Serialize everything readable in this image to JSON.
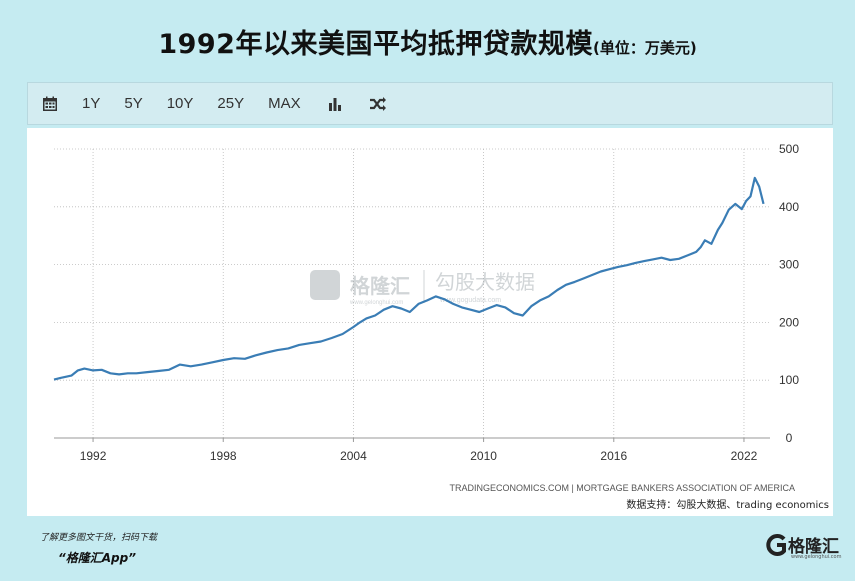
{
  "title": "1992年以来美国平均抵押贷款规模",
  "title_unit": "(单位：万美元)",
  "toolbar": {
    "calendar_icon": "calendar-icon",
    "ranges": [
      "1Y",
      "5Y",
      "10Y",
      "25Y",
      "MAX"
    ],
    "chart_type_icon": "bar-chart-icon",
    "compare_icon": "shuffle-icon"
  },
  "watermark": {
    "brand1": "格隆汇",
    "brand1_url": "www.gelonghui.com",
    "brand2": "勾股大数据",
    "brand2_url": "www.gogudata.com"
  },
  "source_line": "TRADINGECONOMICS.COM  |  MORTGAGE BANKERS ASSOCIATION OF AMERICA",
  "data_support": "数据支持：勾股大数据、trading economics",
  "promo": {
    "line1": "了解更多图文干货，扫码下载",
    "line2": "“格隆汇App”"
  },
  "logo": {
    "text": "格隆汇",
    "sub": "www.gelonghui.com"
  },
  "colors": {
    "line": "#3a7db5",
    "background": "#c5ebf1",
    "grid": "#bbbbbb"
  },
  "chart_data": {
    "type": "line",
    "title": "1992年以来美国平均抵押贷款规模",
    "xlabel": "",
    "ylabel": "",
    "xlim": [
      1990.2,
      2023.2
    ],
    "ylim": [
      0,
      500
    ],
    "x_ticks": [
      "1992",
      "1998",
      "2004",
      "2010",
      "2016",
      "2022"
    ],
    "y_ticks": [
      "0",
      "100",
      "200",
      "300",
      "400",
      "500"
    ],
    "y_axis_position": "right",
    "grid": true,
    "series": [
      {
        "x": [
          1990.2,
          1990.5,
          1991.0,
          1991.3,
          1991.6,
          1992.0,
          1992.4,
          1992.8,
          1993.2,
          1993.6,
          1994.0,
          1994.5,
          1995.0,
          1995.5,
          1996.0,
          1996.5,
          1997.0,
          1997.5,
          1998.0,
          1998.5,
          1999.0,
          1999.5,
          2000.0,
          2000.5,
          2001.0,
          2001.5,
          2002.0,
          2002.5,
          2003.0,
          2003.5,
          2004.0,
          2004.3,
          2004.6,
          2005.0,
          2005.4,
          2005.8,
          2006.2,
          2006.6,
          2007.0,
          2007.4,
          2007.8,
          2008.2,
          2008.6,
          2009.0,
          2009.4,
          2009.8,
          2010.2,
          2010.6,
          2011.0,
          2011.4,
          2011.8,
          2012.2,
          2012.6,
          2013.0,
          2013.4,
          2013.8,
          2014.2,
          2014.6,
          2015.0,
          2015.4,
          2015.8,
          2016.2,
          2016.6,
          2017.0,
          2017.4,
          2017.8,
          2018.2,
          2018.6,
          2019.0,
          2019.4,
          2019.8,
          2020.0,
          2020.2,
          2020.5,
          2020.8,
          2021.0,
          2021.3,
          2021.6,
          2021.9,
          2022.1,
          2022.3,
          2022.5,
          2022.7,
          2022.9
        ],
        "y": [
          101,
          104,
          108,
          117,
          120,
          117,
          118,
          112,
          110,
          112,
          112,
          114,
          116,
          118,
          127,
          124,
          127,
          131,
          135,
          138,
          137,
          143,
          148,
          152,
          155,
          161,
          164,
          167,
          173,
          180,
          192,
          200,
          207,
          212,
          222,
          228,
          224,
          218,
          232,
          238,
          245,
          240,
          232,
          226,
          222,
          218,
          224,
          230,
          226,
          216,
          212,
          228,
          238,
          245,
          256,
          265,
          270,
          276,
          282,
          288,
          292,
          296,
          299,
          303,
          306,
          309,
          312,
          308,
          310,
          316,
          322,
          330,
          342,
          336,
          360,
          372,
          395,
          405,
          396,
          410,
          418,
          450,
          435,
          405
        ]
      }
    ]
  }
}
